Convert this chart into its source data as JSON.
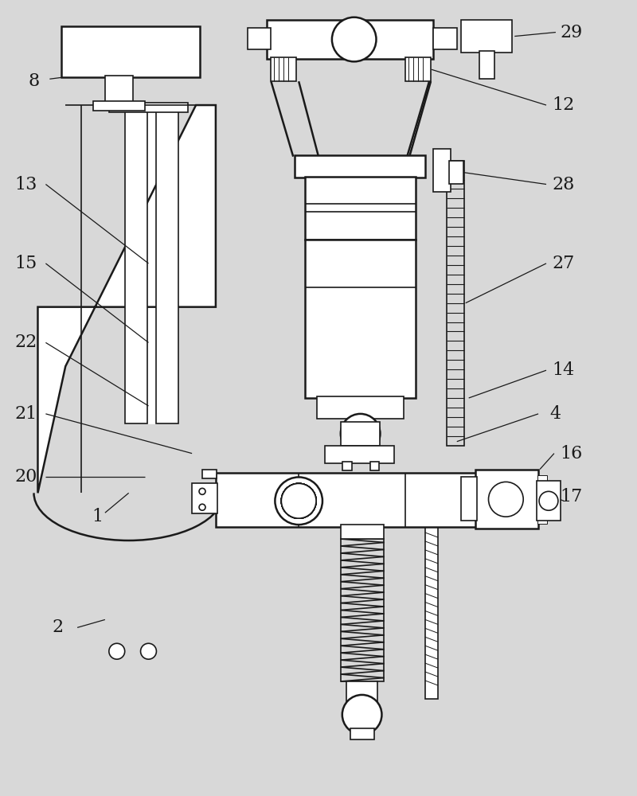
{
  "bg_color": "#d8d8d8",
  "line_color": "#1a1a1a",
  "white": "#ffffff",
  "lw_thick": 1.8,
  "lw_med": 1.2,
  "lw_thin": 0.8,
  "label_fs": 16,
  "label_color": "#1a1a1a"
}
